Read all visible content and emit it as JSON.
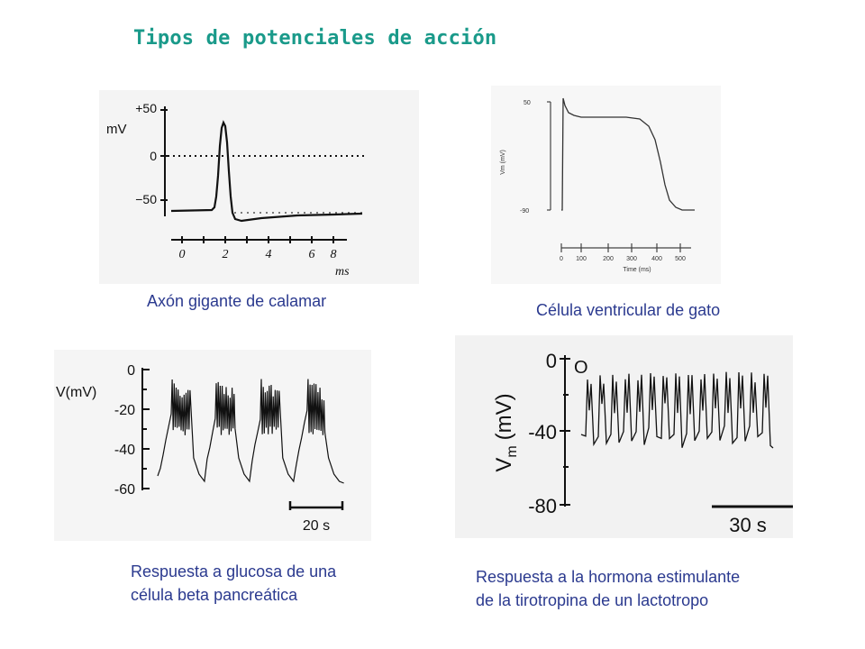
{
  "title": "Tipos de potenciales de acción",
  "panels": {
    "squid": {
      "caption": "Axón gigante de calamar",
      "y_unit": "mV",
      "y_ticks": [
        "+50",
        "0",
        "−50"
      ],
      "x_ticks": [
        "0",
        "2",
        "4",
        "6",
        "8"
      ],
      "x_unit": "ms"
    },
    "cat": {
      "caption": "Célula ventricular de gato",
      "y_label": "Vm (mV)",
      "y_ticks": [
        "50",
        "-90"
      ],
      "x_ticks": [
        "0",
        "100",
        "200",
        "300",
        "400",
        "500"
      ],
      "x_label": "Time (ms)"
    },
    "beta": {
      "caption_line1": "Respuesta a glucosa de una",
      "caption_line2": "célula beta pancreática",
      "y_label": "V(mV)",
      "y_ticks": [
        "0",
        "-20",
        "-40",
        "-60"
      ],
      "scale_label": "20 s"
    },
    "lacto": {
      "caption_line1": "Respuesta a la hormona estimulante",
      "caption_line2": "de la tirotropina de un lactotropo",
      "y_label_main": "V",
      "y_label_sub": "m",
      "y_label_unit": "(mV)",
      "y_ticks": [
        "0",
        "-40",
        "-80"
      ],
      "marker": "O",
      "scale_label": "30 s"
    }
  },
  "colors": {
    "title": "#1a9a8a",
    "caption": "#2b3a8f",
    "trace": "#111111"
  }
}
